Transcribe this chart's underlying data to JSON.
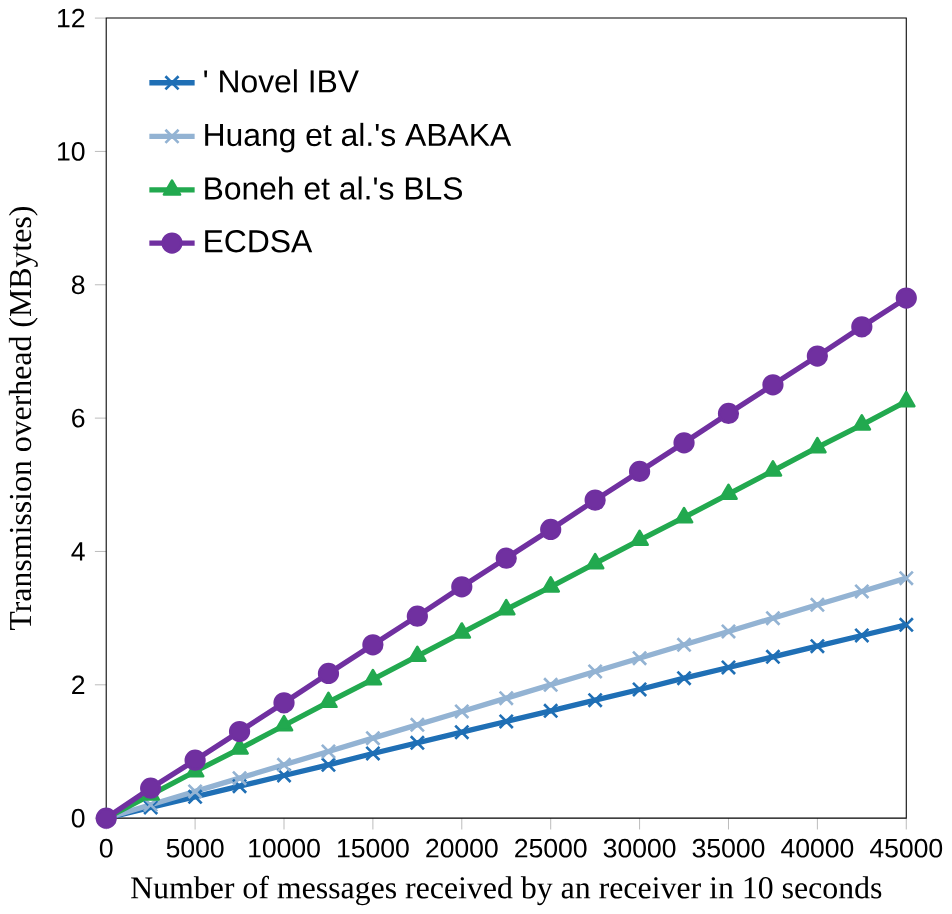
{
  "chart_data": {
    "type": "line",
    "xlabel": "Number of messages received by an receiver in 10 seconds",
    "ylabel": "Transmission overhead (MBytes)",
    "x": [
      0,
      2500,
      5000,
      7500,
      10000,
      12500,
      15000,
      17500,
      20000,
      22500,
      25000,
      27500,
      30000,
      32500,
      35000,
      37500,
      40000,
      42500,
      45000
    ],
    "series": [
      {
        "name": "' Novel IBV",
        "color": "#1f6fb5",
        "marker": "cross",
        "values": [
          0,
          0.16,
          0.32,
          0.48,
          0.64,
          0.8,
          0.97,
          1.13,
          1.29,
          1.45,
          1.61,
          1.77,
          1.93,
          2.1,
          2.26,
          2.42,
          2.58,
          2.74,
          2.9
        ]
      },
      {
        "name": "Huang et al.'s ABAKA",
        "color": "#93b3d3",
        "marker": "cross",
        "values": [
          0,
          0.2,
          0.4,
          0.6,
          0.8,
          1.0,
          1.2,
          1.4,
          1.6,
          1.8,
          2.0,
          2.2,
          2.4,
          2.6,
          2.8,
          3.0,
          3.2,
          3.4,
          3.6
        ]
      },
      {
        "name": "Boneh et al.'s BLS",
        "color": "#22a94f",
        "marker": "triangle",
        "values": [
          0,
          0.35,
          0.7,
          1.04,
          1.39,
          1.74,
          2.08,
          2.43,
          2.78,
          3.13,
          3.47,
          3.82,
          4.17,
          4.51,
          4.86,
          5.21,
          5.56,
          5.9,
          6.25
        ]
      },
      {
        "name": "ECDSA",
        "color": "#7030a0",
        "marker": "circle",
        "values": [
          0,
          0.45,
          0.87,
          1.3,
          1.73,
          2.17,
          2.6,
          3.03,
          3.47,
          3.9,
          4.33,
          4.77,
          5.2,
          5.63,
          6.07,
          6.5,
          6.93,
          7.37,
          7.8
        ]
      }
    ],
    "xlim": [
      0,
      45000
    ],
    "xticks": [
      0,
      5000,
      10000,
      15000,
      20000,
      25000,
      30000,
      35000,
      40000,
      45000
    ],
    "ylim": [
      0,
      12
    ],
    "yticks": [
      0,
      2,
      4,
      6,
      8,
      10,
      12
    ],
    "legend": "top left",
    "grid": false,
    "line_style": "solid"
  }
}
